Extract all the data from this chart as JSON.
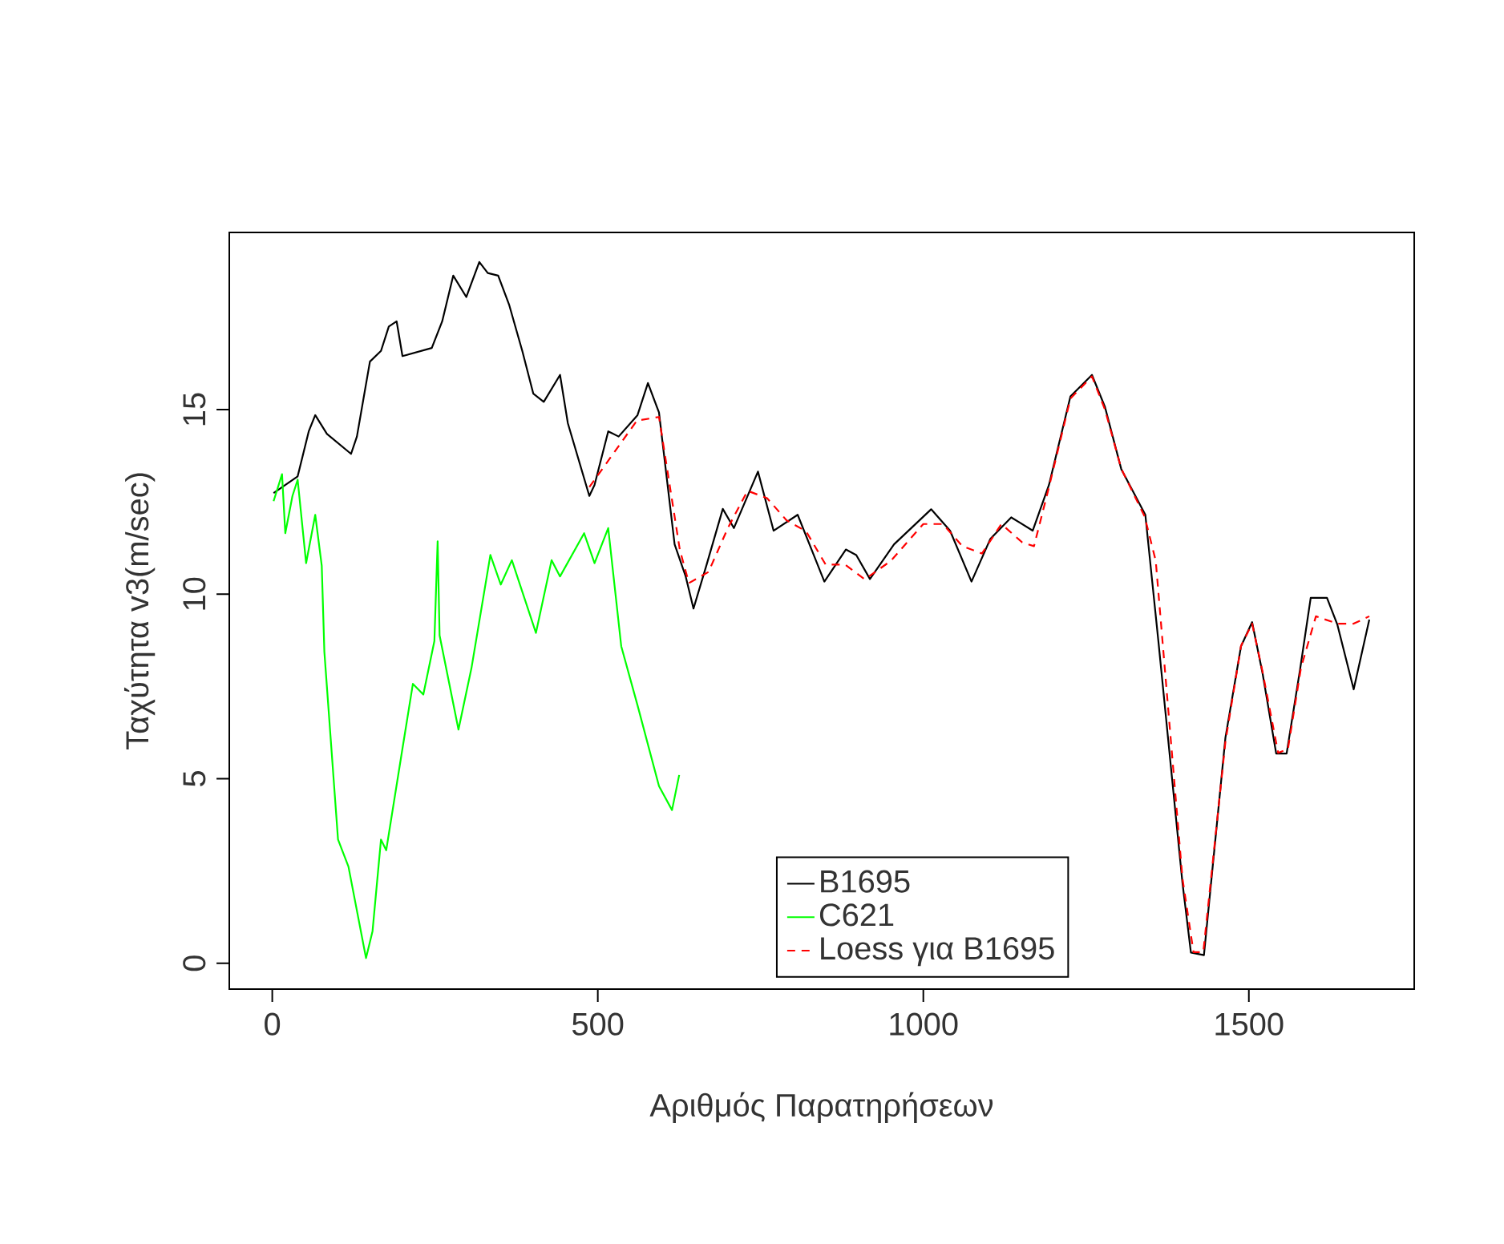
{
  "chart_data": {
    "type": "line",
    "xlabel": "Αριθμός Παρατηρήσεων",
    "ylabel": "Ταχύτητα v3(m/sec)",
    "xlim": [
      -66,
      1754
    ],
    "ylim": [
      -0.7,
      19.8
    ],
    "xticks": [
      0,
      500,
      1000,
      1500
    ],
    "yticks": [
      0,
      5,
      10,
      15
    ],
    "grid": false,
    "legend": "bottom",
    "marker": "none",
    "series": [
      {
        "name": "B1695",
        "color": "#000000",
        "line_style": "solid",
        "x": [
          2,
          39,
          56,
          66,
          84,
          121,
          130,
          150,
          167,
          179,
          191,
          200,
          245,
          261,
          278,
          298,
          318,
          331,
          347,
          364,
          384,
          401,
          417,
          442,
          454,
          487,
          495,
          516,
          532,
          561,
          577,
          594,
          618,
          635,
          647,
          667,
          692,
          709,
          746,
          770,
          807,
          848,
          881,
          897,
          918,
          955,
          1012,
          1041,
          1074,
          1103,
          1135,
          1168,
          1193,
          1226,
          1259,
          1279,
          1304,
          1341,
          1361,
          1398,
          1411,
          1431,
          1464,
          1488,
          1505,
          1521,
          1542,
          1558,
          1579,
          1595,
          1620,
          1636,
          1661,
          1685
        ],
        "values": [
          12.74,
          13.19,
          14.41,
          14.85,
          14.34,
          13.8,
          14.27,
          16.3,
          16.59,
          17.25,
          17.39,
          16.45,
          16.67,
          17.39,
          18.63,
          18.05,
          19.0,
          18.7,
          18.63,
          17.83,
          16.59,
          15.43,
          15.21,
          15.94,
          14.63,
          12.66,
          12.96,
          14.41,
          14.27,
          14.85,
          15.72,
          14.92,
          11.35,
          10.48,
          9.61,
          10.79,
          12.31,
          11.79,
          13.32,
          11.72,
          12.15,
          10.34,
          11.21,
          11.06,
          10.41,
          11.35,
          12.3,
          11.72,
          10.34,
          11.5,
          12.08,
          11.72,
          12.96,
          15.36,
          15.94,
          15.07,
          13.39,
          12.15,
          8.73,
          2.18,
          0.29,
          0.22,
          6.11,
          8.59,
          9.24,
          7.86,
          5.68,
          5.68,
          8.0,
          9.9,
          9.9,
          9.17,
          7.42,
          9.31
        ]
      },
      {
        "name": "C621",
        "color": "#00ff00",
        "line_style": "solid",
        "x": [
          2,
          15,
          20,
          31,
          39,
          52,
          66,
          76,
          80,
          101,
          117,
          144,
          154,
          167,
          175,
          200,
          216,
          232,
          249,
          254,
          257,
          286,
          306,
          335,
          351,
          368,
          405,
          429,
          442,
          479,
          495,
          516,
          536,
          561,
          594,
          614,
          625
        ],
        "values": [
          12.52,
          13.25,
          11.65,
          12.66,
          13.1,
          10.84,
          12.15,
          10.77,
          8.44,
          3.35,
          2.62,
          0.14,
          0.87,
          3.35,
          3.06,
          5.82,
          7.57,
          7.28,
          8.73,
          11.43,
          8.88,
          6.33,
          8.0,
          11.06,
          10.26,
          10.92,
          8.95,
          10.92,
          10.48,
          11.65,
          10.84,
          11.79,
          8.59,
          6.99,
          4.8,
          4.15,
          5.1
        ]
      },
      {
        "name": "Loess για B1695",
        "color": "#ff0000",
        "line_style": "dashed",
        "x": [
          487,
          560,
          594,
          626,
          640,
          670,
          700,
          730,
          760,
          790,
          820,
          850,
          880,
          910,
          950,
          1000,
          1030,
          1060,
          1090,
          1120,
          1152,
          1170,
          1193,
          1226,
          1259,
          1279,
          1304,
          1340,
          1357,
          1398,
          1415,
          1430,
          1464,
          1488,
          1505,
          1521,
          1545,
          1560,
          1580,
          1603,
          1636,
          1661,
          1685
        ],
        "values": [
          12.9,
          14.7,
          14.8,
          11.2,
          10.3,
          10.6,
          11.8,
          12.8,
          12.6,
          12.0,
          11.7,
          10.8,
          10.8,
          10.4,
          10.9,
          11.9,
          11.9,
          11.3,
          11.1,
          11.9,
          11.4,
          11.3,
          12.9,
          15.3,
          15.9,
          15.0,
          13.4,
          12.1,
          10.9,
          2.3,
          0.3,
          0.3,
          6.0,
          8.6,
          9.2,
          7.9,
          5.7,
          5.8,
          8.0,
          9.4,
          9.2,
          9.2,
          9.4
        ]
      }
    ]
  }
}
